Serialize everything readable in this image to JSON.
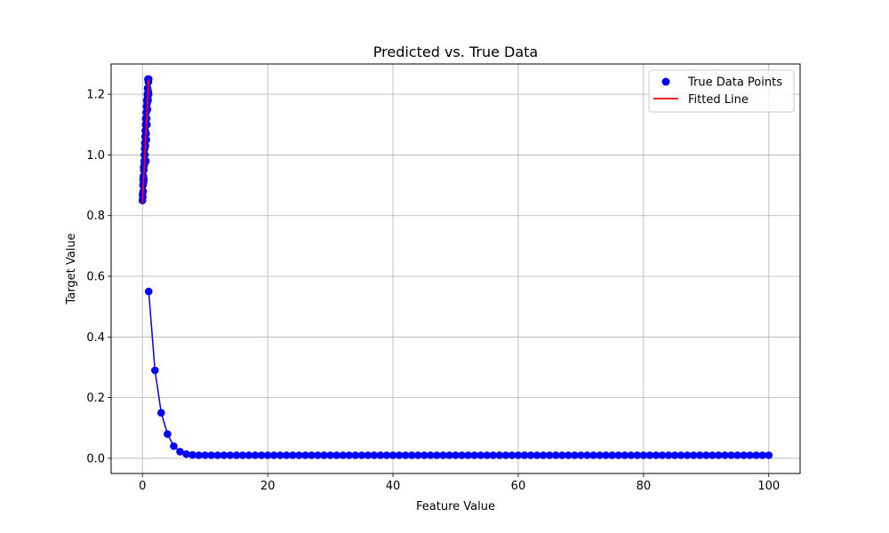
{
  "chart_data": {
    "type": "scatter",
    "title": "Predicted vs. True Data",
    "xlabel": "Feature Value",
    "ylabel": "Target Value",
    "xlim": [
      -5,
      105
    ],
    "ylim": [
      -0.05,
      1.3
    ],
    "xticks": [
      0,
      20,
      40,
      60,
      80,
      100
    ],
    "yticks": [
      0.0,
      0.2,
      0.4,
      0.6,
      0.8,
      1.0,
      1.2
    ],
    "xtick_labels": [
      "0",
      "20",
      "40",
      "60",
      "80",
      "100"
    ],
    "ytick_labels": [
      "0.0",
      "0.2",
      "0.4",
      "0.6",
      "0.8",
      "1.0",
      "1.2"
    ],
    "grid": true,
    "legend": {
      "placement": "top-right",
      "entries": [
        "True Data Points",
        "Fitted Line"
      ]
    },
    "series": [
      {
        "name": "True Data Points",
        "kind": "scatter",
        "color": "#0000ff",
        "x": [
          0.0,
          0.02,
          0.05,
          0.08,
          0.1,
          0.12,
          0.15,
          0.18,
          0.2,
          0.22,
          0.25,
          0.28,
          0.3,
          0.32,
          0.35,
          0.38,
          0.4,
          0.42,
          0.45,
          0.48,
          0.5,
          0.52,
          0.55,
          0.58,
          0.6,
          0.62,
          0.65,
          0.68,
          0.7,
          0.72,
          0.75,
          0.78,
          0.8,
          0.82,
          0.85,
          0.88,
          0.9,
          0.92,
          0.95,
          0.98,
          1.0
        ],
        "y": [
          0.85,
          0.87,
          0.86,
          0.9,
          0.92,
          0.88,
          0.93,
          0.91,
          0.96,
          0.95,
          0.92,
          0.98,
          1.0,
          0.97,
          1.02,
          1.04,
          1.0,
          1.06,
          1.08,
          1.03,
          1.1,
          1.12,
          0.98,
          1.07,
          1.14,
          1.05,
          1.16,
          1.12,
          1.18,
          1.1,
          1.17,
          1.2,
          1.15,
          1.22,
          1.19,
          1.25,
          1.18,
          1.21,
          1.24,
          1.2,
          1.25
        ]
      },
      {
        "name": "",
        "kind": "line-markers",
        "color": "#0000ff",
        "x": [
          1,
          2,
          3,
          4,
          5,
          6,
          7,
          8,
          9,
          10,
          11,
          12,
          13,
          14,
          15,
          16,
          17,
          18,
          19,
          20,
          21,
          22,
          23,
          24,
          25,
          26,
          27,
          28,
          29,
          30,
          31,
          32,
          33,
          34,
          35,
          36,
          37,
          38,
          39,
          40,
          41,
          42,
          43,
          44,
          45,
          46,
          47,
          48,
          49,
          50,
          51,
          52,
          53,
          54,
          55,
          56,
          57,
          58,
          59,
          60,
          61,
          62,
          63,
          64,
          65,
          66,
          67,
          68,
          69,
          70,
          71,
          72,
          73,
          74,
          75,
          76,
          77,
          78,
          79,
          80,
          81,
          82,
          83,
          84,
          85,
          86,
          87,
          88,
          89,
          90,
          91,
          92,
          93,
          94,
          95,
          96,
          97,
          98,
          99,
          100
        ],
        "y": [
          0.55,
          0.29,
          0.15,
          0.08,
          0.04,
          0.022,
          0.014,
          0.011,
          0.01,
          0.01,
          0.01,
          0.01,
          0.01,
          0.01,
          0.01,
          0.01,
          0.01,
          0.01,
          0.01,
          0.01,
          0.01,
          0.01,
          0.01,
          0.01,
          0.01,
          0.01,
          0.01,
          0.01,
          0.01,
          0.01,
          0.01,
          0.01,
          0.01,
          0.01,
          0.01,
          0.01,
          0.01,
          0.01,
          0.01,
          0.01,
          0.01,
          0.01,
          0.01,
          0.01,
          0.01,
          0.01,
          0.01,
          0.01,
          0.01,
          0.01,
          0.01,
          0.01,
          0.01,
          0.01,
          0.01,
          0.01,
          0.01,
          0.01,
          0.01,
          0.01,
          0.01,
          0.01,
          0.01,
          0.01,
          0.01,
          0.01,
          0.01,
          0.01,
          0.01,
          0.01,
          0.01,
          0.01,
          0.01,
          0.01,
          0.01,
          0.01,
          0.01,
          0.01,
          0.01,
          0.01,
          0.01,
          0.01,
          0.01,
          0.01,
          0.01,
          0.01,
          0.01,
          0.01,
          0.01,
          0.01,
          0.01,
          0.01,
          0.01,
          0.01,
          0.01,
          0.01,
          0.01,
          0.01,
          0.01,
          0.01
        ]
      },
      {
        "name": "Fitted Line",
        "kind": "line",
        "color": "#ff0000",
        "x": [
          0.0,
          1.0
        ],
        "y": [
          0.84,
          1.25
        ]
      }
    ]
  }
}
